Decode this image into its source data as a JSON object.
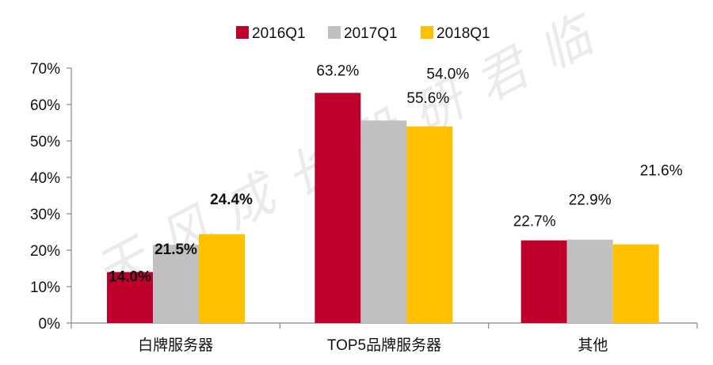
{
  "chart_data": {
    "type": "bar",
    "categories": [
      "白牌服务器",
      "TOP5品牌服务器",
      "其他"
    ],
    "series": [
      {
        "name": "2016Q1",
        "color": "#C0002C",
        "values": [
          14.0,
          63.2,
          22.7
        ]
      },
      {
        "name": "2017Q1",
        "color": "#C0C0C0",
        "values": [
          21.5,
          55.6,
          22.9
        ]
      },
      {
        "name": "2018Q1",
        "color": "#FFC000",
        "values": [
          24.4,
          54.0,
          21.6
        ]
      }
    ],
    "data_labels": [
      [
        "14.0%",
        "63.2%",
        "22.7%"
      ],
      [
        "21.5%",
        "55.6%",
        "22.9%"
      ],
      [
        "24.4%",
        "54.0%",
        "21.6%"
      ]
    ],
    "bold_labels_category": 0,
    "y_ticks": [
      "0%",
      "10%",
      "20%",
      "30%",
      "40%",
      "50%",
      "60%",
      "70%"
    ],
    "ylim": [
      0,
      70
    ],
    "ytick_step": 10,
    "grid": false,
    "legend_position": "top-center",
    "watermark": "天风成长股研君临"
  }
}
